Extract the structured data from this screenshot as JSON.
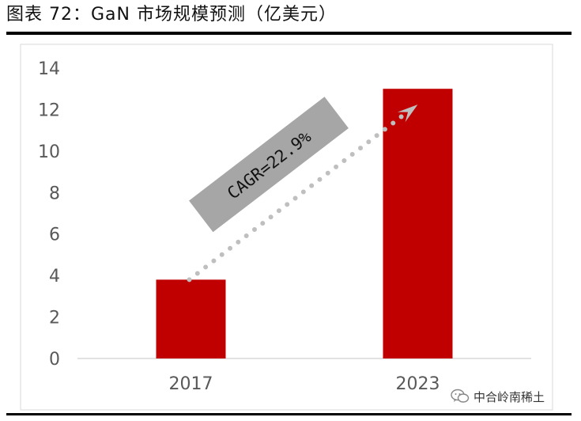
{
  "figure_title": "图表 72：GaN 市场规模预测（亿美元）",
  "watermark": {
    "text": "中合岭南稀土",
    "icon": "wechat-icon"
  },
  "colors": {
    "bar": "#C00000",
    "axis": "#D9D9D9",
    "tick_text": "#595959",
    "annotation_box": "#A6A6A6",
    "dots": "#BFBFBF"
  },
  "chart_data": {
    "type": "bar",
    "categories": [
      "2017",
      "2023"
    ],
    "values": [
      3.8,
      13.0
    ],
    "ylim": [
      0,
      14
    ],
    "yticks": [
      "0",
      "2",
      "4",
      "6",
      "8",
      "10",
      "12",
      "14"
    ],
    "xlabel": "",
    "ylabel": "",
    "grid": false,
    "annotation": "CAGR=22.9%"
  }
}
